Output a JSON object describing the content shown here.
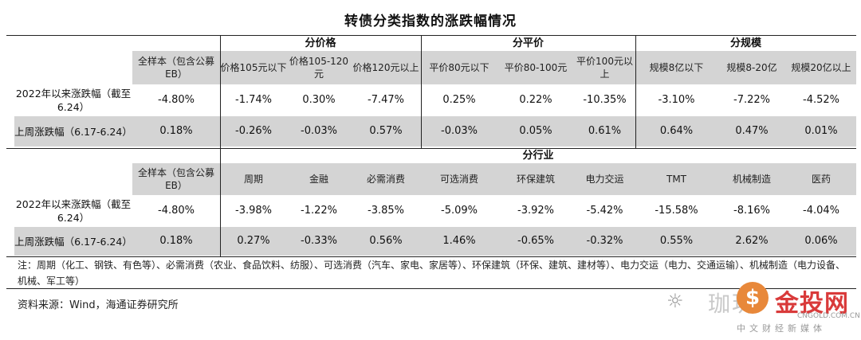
{
  "title": "转债分类指数的涨跌幅情况",
  "table1": {
    "group_headers": [
      "分价格",
      "分平价",
      "分规模"
    ],
    "columns": [
      "全样本（包含公募EB）",
      "价格105元以下",
      "价格105-120元",
      "价格120元以上",
      "平价80元以下",
      "平价80-100元",
      "平价100元以上",
      "规模8亿以下",
      "规模8-20亿",
      "规模20亿以上"
    ],
    "rows": [
      {
        "label": "2022年以来涨跌幅（截至6.24）",
        "values": [
          "-4.80%",
          "-1.74%",
          "0.30%",
          "-7.47%",
          "0.25%",
          "0.22%",
          "-10.35%",
          "-3.10%",
          "-7.22%",
          "-4.52%"
        ]
      },
      {
        "label": "上周涨跌幅（6.17-6.24）",
        "values": [
          "0.18%",
          "-0.26%",
          "-0.03%",
          "0.57%",
          "-0.03%",
          "0.05%",
          "0.61%",
          "0.64%",
          "0.47%",
          "0.01%"
        ]
      }
    ]
  },
  "table2": {
    "group_header": "分行业",
    "columns": [
      "全样本（包含公募EB）",
      "周期",
      "金融",
      "必需消费",
      "可选消费",
      "环保建筑",
      "电力交运",
      "TMT",
      "机械制造",
      "医药"
    ],
    "rows": [
      {
        "label": "2022年以来涨跌幅（截至6.24）",
        "values": [
          "-4.80%",
          "-3.98%",
          "-1.22%",
          "-3.85%",
          "-5.09%",
          "-3.92%",
          "-5.42%",
          "-15.58%",
          "-8.16%",
          "-4.04%"
        ]
      },
      {
        "label": "上周涨跌幅（6.17-6.24）",
        "values": [
          "0.18%",
          "0.27%",
          "-0.33%",
          "0.56%",
          "1.46%",
          "-0.65%",
          "-0.32%",
          "0.55%",
          "2.62%",
          "0.06%"
        ]
      }
    ]
  },
  "note": "注：周期（化工、钢铁、有色等）、必需消费（农业、食品饮料、纺服）、可选消费（汽车、家电、家居等）、环保建筑（环保、建筑、建材等）、电力交运（电力、交通运输）、机械制造（电力设备、机械、军工等）",
  "source": "资料来源：Wind，海通证券研究所",
  "watermark": {
    "wechat": "珈玥",
    "logo": "金投网",
    "domain": "CNGOLD.COM.CN",
    "tagline": "中文财经新媒体"
  }
}
